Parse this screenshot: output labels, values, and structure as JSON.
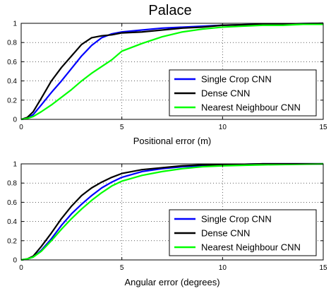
{
  "figure_title": "Palace",
  "chart_data": [
    {
      "type": "line",
      "xlabel": "Positional error (m)",
      "ylabel": "",
      "xlim": [
        0,
        15
      ],
      "ylim": [
        0,
        1
      ],
      "x_ticks": [
        "0",
        "5",
        "10",
        "15"
      ],
      "y_ticks": [
        "0",
        "0.2",
        "0.4",
        "0.6",
        "0.8",
        "1"
      ],
      "grid": true,
      "legend_position": "bottom-right",
      "series": [
        {
          "name": "Single Crop CNN",
          "color": "#0000ff",
          "x": [
            0,
            0.3,
            0.6,
            1.0,
            1.5,
            2.0,
            2.5,
            3.0,
            3.5,
            4.0,
            4.5,
            5.0,
            6.0,
            7.0,
            8.0,
            9.0,
            10.0,
            12.0,
            15.0
          ],
          "y": [
            0,
            0.01,
            0.05,
            0.15,
            0.28,
            0.4,
            0.53,
            0.66,
            0.77,
            0.85,
            0.89,
            0.91,
            0.93,
            0.95,
            0.96,
            0.97,
            0.98,
            0.99,
            1.0
          ]
        },
        {
          "name": "Dense CNN",
          "color": "#000000",
          "x": [
            0,
            0.3,
            0.6,
            1.0,
            1.5,
            2.0,
            2.5,
            3.0,
            3.5,
            4.0,
            4.5,
            5.0,
            6.0,
            7.0,
            8.0,
            9.0,
            10.0,
            12.0,
            15.0
          ],
          "y": [
            0,
            0.02,
            0.08,
            0.22,
            0.4,
            0.54,
            0.66,
            0.78,
            0.85,
            0.87,
            0.88,
            0.9,
            0.91,
            0.93,
            0.95,
            0.96,
            0.98,
            0.99,
            1.0
          ]
        },
        {
          "name": "Nearest Neighbour CNN",
          "color": "#00ff00",
          "x": [
            0,
            0.3,
            0.6,
            1.0,
            1.5,
            2.0,
            2.5,
            3.0,
            3.5,
            4.0,
            4.5,
            5.0,
            6.0,
            7.0,
            8.0,
            9.0,
            10.0,
            11.0,
            12.0,
            13.0,
            14.0,
            15.0
          ],
          "y": [
            0,
            0.01,
            0.03,
            0.08,
            0.15,
            0.23,
            0.31,
            0.4,
            0.48,
            0.55,
            0.62,
            0.71,
            0.79,
            0.86,
            0.91,
            0.94,
            0.96,
            0.97,
            0.98,
            0.98,
            0.99,
            0.99
          ]
        }
      ]
    },
    {
      "type": "line",
      "xlabel": "Angular error (degrees)",
      "ylabel": "",
      "xlim": [
        0,
        15
      ],
      "ylim": [
        0,
        1
      ],
      "x_ticks": [
        "0",
        "5",
        "10",
        "15"
      ],
      "y_ticks": [
        "0",
        "0.2",
        "0.4",
        "0.6",
        "0.8",
        "1"
      ],
      "grid": true,
      "legend_position": "bottom-right",
      "series": [
        {
          "name": "Single Crop CNN",
          "color": "#0000ff",
          "x": [
            0,
            0.3,
            0.6,
            1.0,
            1.5,
            2.0,
            2.5,
            3.0,
            3.5,
            4.0,
            4.5,
            5.0,
            6.0,
            7.0,
            8.0,
            9.0,
            10.0,
            12.0,
            15.0
          ],
          "y": [
            0,
            0.01,
            0.03,
            0.1,
            0.22,
            0.36,
            0.48,
            0.58,
            0.67,
            0.75,
            0.81,
            0.86,
            0.92,
            0.95,
            0.97,
            0.98,
            0.99,
            1.0,
            1.0
          ]
        },
        {
          "name": "Dense CNN",
          "color": "#000000",
          "x": [
            0,
            0.3,
            0.6,
            1.0,
            1.5,
            2.0,
            2.5,
            3.0,
            3.5,
            4.0,
            4.5,
            5.0,
            6.0,
            7.0,
            8.0,
            9.0,
            10.0,
            12.0,
            15.0
          ],
          "y": [
            0,
            0.01,
            0.04,
            0.14,
            0.28,
            0.43,
            0.56,
            0.67,
            0.75,
            0.81,
            0.86,
            0.9,
            0.94,
            0.96,
            0.98,
            0.99,
            0.99,
            1.0,
            1.0
          ]
        },
        {
          "name": "Nearest Neighbour CNN",
          "color": "#00ff00",
          "x": [
            0,
            0.3,
            0.6,
            1.0,
            1.5,
            2.0,
            2.5,
            3.0,
            3.5,
            4.0,
            4.5,
            5.0,
            6.0,
            7.0,
            8.0,
            9.0,
            10.0,
            12.0,
            15.0
          ],
          "y": [
            0,
            0.01,
            0.03,
            0.09,
            0.2,
            0.32,
            0.43,
            0.53,
            0.62,
            0.7,
            0.77,
            0.82,
            0.88,
            0.92,
            0.95,
            0.97,
            0.98,
            0.99,
            1.0
          ]
        }
      ]
    }
  ]
}
